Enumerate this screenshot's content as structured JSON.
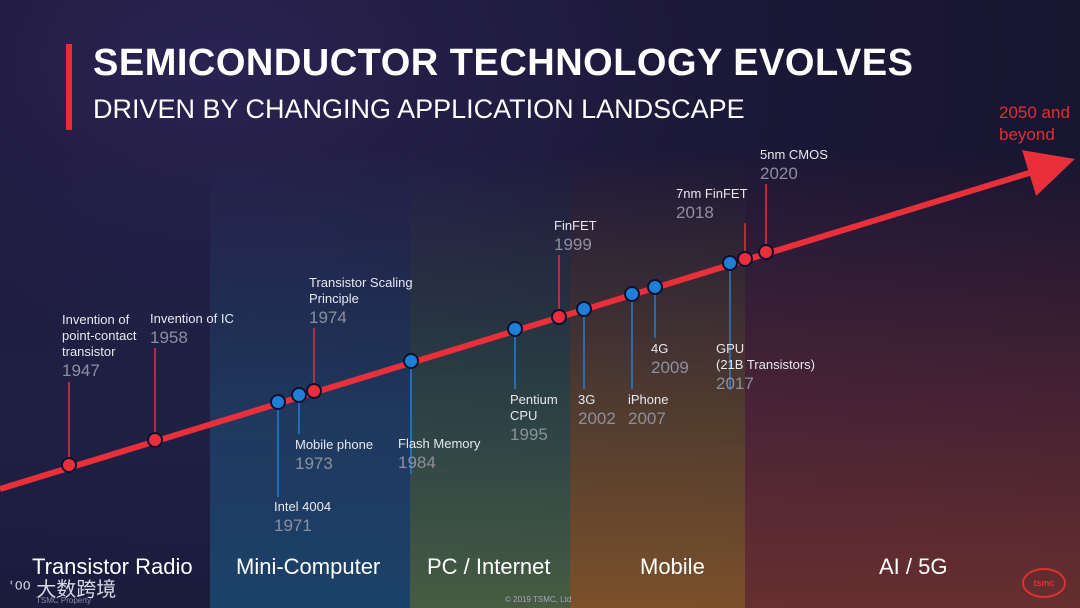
{
  "header": {
    "title": "SEMICONDUCTOR TECHNOLOGY EVOLVES",
    "subtitle": "DRIVEN BY CHANGING APPLICATION LANDSCAPE"
  },
  "beyond": {
    "line1": "2050 and",
    "line2": "beyond"
  },
  "colors": {
    "accent_red": "#e0302f",
    "marker_blue": "#1f7fd6",
    "marker_red": "#e82f3a"
  },
  "eras": [
    {
      "label": "Transistor Radio"
    },
    {
      "label": "Mini-Computer"
    },
    {
      "label": "PC / Internet"
    },
    {
      "label": "Mobile"
    },
    {
      "label": "AI / 5G"
    }
  ],
  "events": [
    {
      "name": [
        "Invention of",
        "point-contact",
        "transistor"
      ],
      "year": "1947",
      "marker": "red"
    },
    {
      "name": [
        "Invention of IC"
      ],
      "year": "1958",
      "marker": "red"
    },
    {
      "name": [
        "Intel 4004"
      ],
      "year": "1971",
      "marker": "blue"
    },
    {
      "name": [
        "Mobile phone"
      ],
      "year": "1973",
      "marker": "blue"
    },
    {
      "name": [
        "Transistor Scaling",
        "Principle"
      ],
      "year": "1974",
      "marker": "red"
    },
    {
      "name": [
        "Flash Memory"
      ],
      "year": "1984",
      "marker": "blue"
    },
    {
      "name": [
        "Pentium",
        "CPU"
      ],
      "year": "1995",
      "marker": "blue"
    },
    {
      "name": [
        "FinFET"
      ],
      "year": "1999",
      "marker": "red"
    },
    {
      "name": [
        "3G"
      ],
      "year": "2002",
      "marker": "blue"
    },
    {
      "name": [
        "iPhone"
      ],
      "year": "2007",
      "marker": "blue"
    },
    {
      "name": [
        "4G"
      ],
      "year": "2009",
      "marker": "blue"
    },
    {
      "name": [
        "GPU",
        "(21B Transistors)"
      ],
      "year": "2017",
      "marker": "blue"
    },
    {
      "name": [
        "7nm FinFET"
      ],
      "year": "2018",
      "marker": "red"
    },
    {
      "name": [
        "5nm CMOS"
      ],
      "year": "2020",
      "marker": "red"
    }
  ],
  "footer": {
    "watermark": "大数跨境",
    "property": "TSMC Property",
    "copyright": "© 2019 TSMC, Ltd",
    "logo_text": "tsmc"
  }
}
